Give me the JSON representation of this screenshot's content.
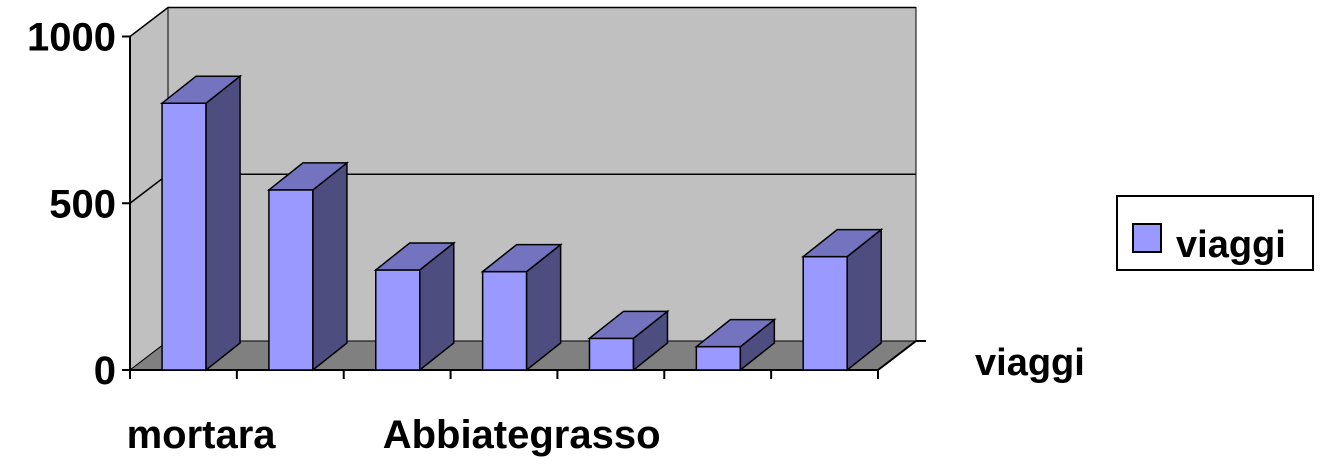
{
  "chart_data": {
    "type": "bar",
    "is_3d": true,
    "categories": [
      "mortara",
      "",
      "",
      "Abbiategrasso",
      "",
      "",
      ""
    ],
    "series": [
      {
        "name": "viaggi",
        "values": [
          800,
          540,
          300,
          295,
          95,
          70,
          340
        ]
      }
    ],
    "ylim": [
      0,
      1000
    ],
    "yticks": [
      0,
      500,
      1000
    ],
    "depth_label": "viaggi",
    "legend": {
      "position": "right",
      "entries": [
        "viaggi"
      ]
    },
    "grid": true,
    "colors": {
      "bar_front": "#9999ff",
      "bar_side": "#4d4d80",
      "bar_top": "#7373bf",
      "back_wall": "#c0c0c0",
      "floor": "#808080"
    }
  }
}
